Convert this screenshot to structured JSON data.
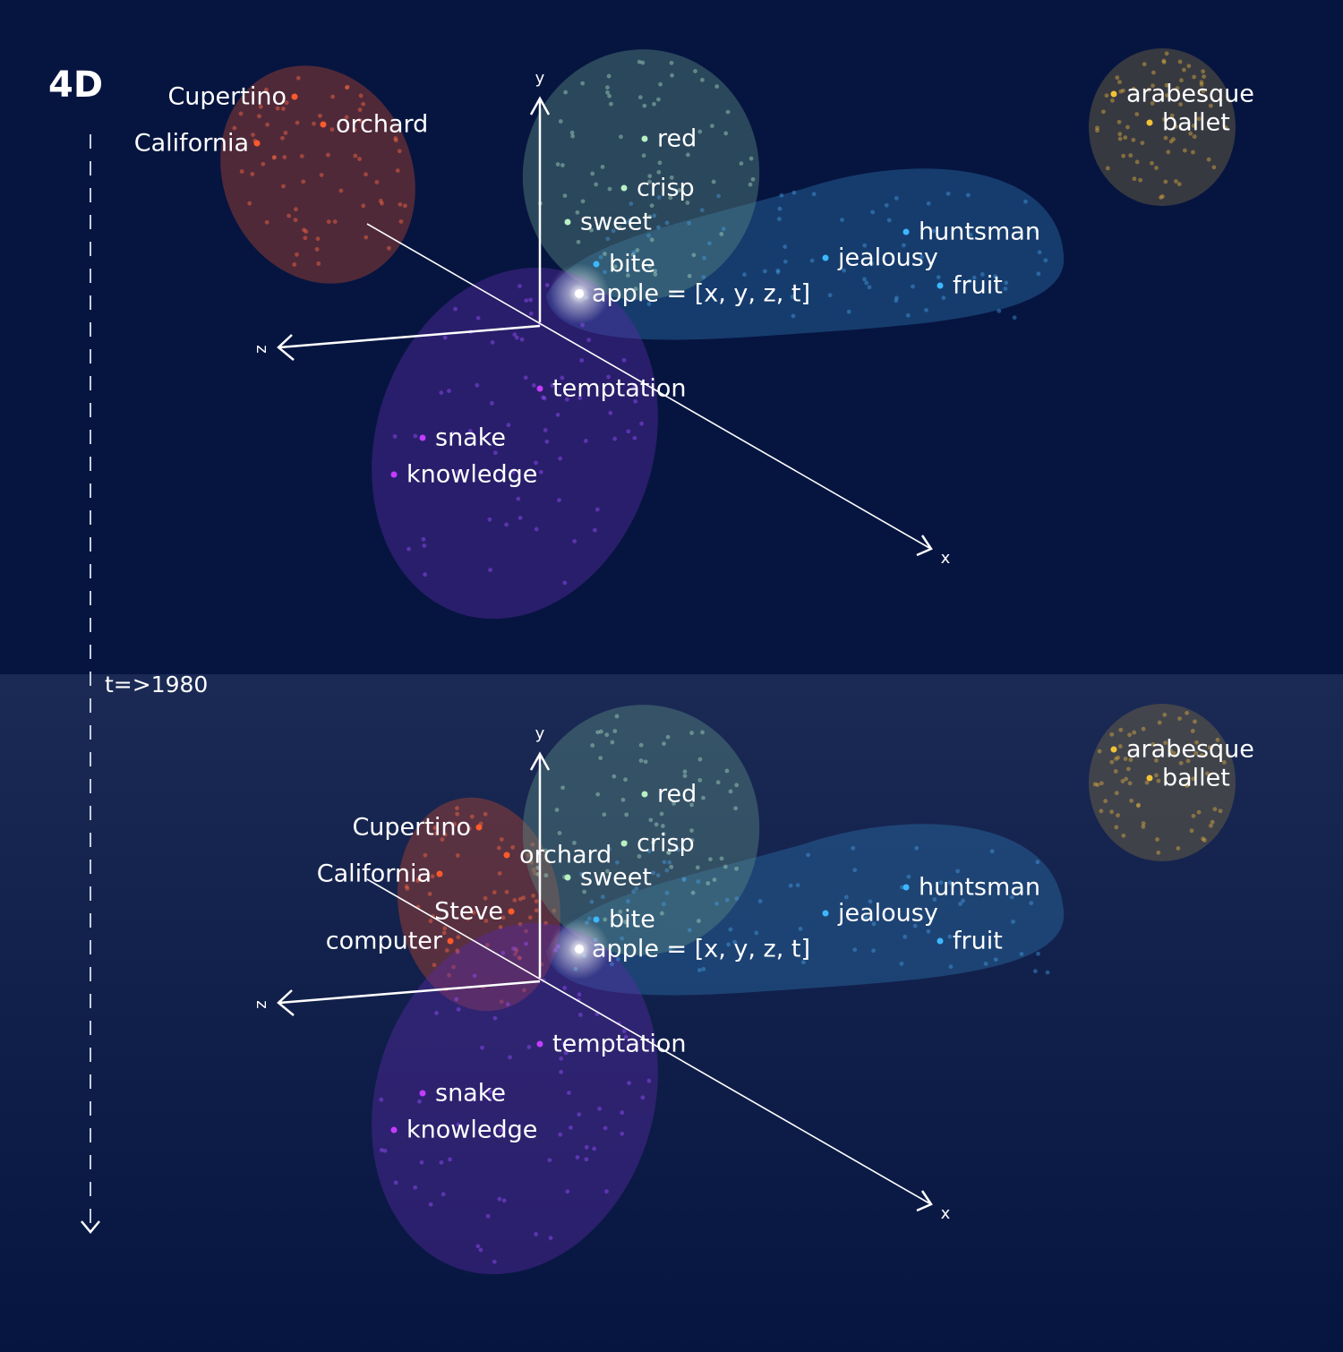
{
  "title": "4D",
  "time_label": "t=>1980",
  "panels": [
    {
      "axis_labels": {
        "x": "x",
        "y": "y",
        "z": "z"
      },
      "words": [
        "Cupertino",
        "orchard",
        "California",
        "red",
        "crisp",
        "sweet",
        "bite",
        "apple = [x, y, z, t]",
        "huntsman",
        "jealousy",
        "fruit",
        "arabesque",
        "ballet",
        "temptation",
        "snake",
        "knowledge"
      ]
    },
    {
      "axis_labels": {
        "x": "x",
        "y": "y",
        "z": "z"
      },
      "words": [
        "Cupertino",
        "orchard",
        "California",
        "Steve",
        "computer",
        "red",
        "crisp",
        "sweet",
        "bite",
        "apple = [x, y, z, t]",
        "huntsman",
        "jealousy",
        "fruit",
        "arabesque",
        "ballet",
        "temptation",
        "snake",
        "knowledge"
      ]
    }
  ]
}
